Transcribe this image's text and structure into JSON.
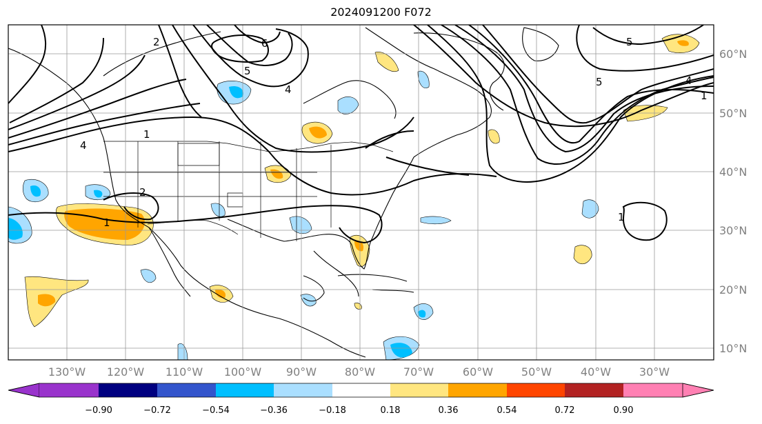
{
  "title": "2024091200 F072",
  "map": {
    "lon_labels": [
      "130°W",
      "120°W",
      "110°W",
      "100°W",
      "90°W",
      "80°W",
      "70°W",
      "60°W",
      "50°W",
      "40°W",
      "30°W"
    ],
    "lat_labels": [
      "60°N",
      "50°N",
      "40°N",
      "30°N",
      "20°N",
      "10°N"
    ],
    "contour_labels": [
      "2",
      "6",
      "5",
      "4",
      "1",
      "2",
      "1",
      "5",
      "4",
      "5",
      "4",
      "1",
      "1"
    ],
    "colors": {
      "neg_090": "#9933cc",
      "neg_072": "#000080",
      "neg_054": "#3355cc",
      "neg_036": "#00bfff",
      "neg_018": "#aadfff",
      "neutral": "#ffffff",
      "pos_018": "#ffe680",
      "pos_036": "#ffa500",
      "pos_054": "#ff4500",
      "pos_072": "#b22222",
      "pos_090": "#ff80b3"
    }
  },
  "colorbar": {
    "ticks": [
      "−0.90",
      "−0.72",
      "−0.54",
      "−0.36",
      "−0.18",
      "0.18",
      "0.36",
      "0.54",
      "0.72",
      "0.90"
    ]
  }
}
